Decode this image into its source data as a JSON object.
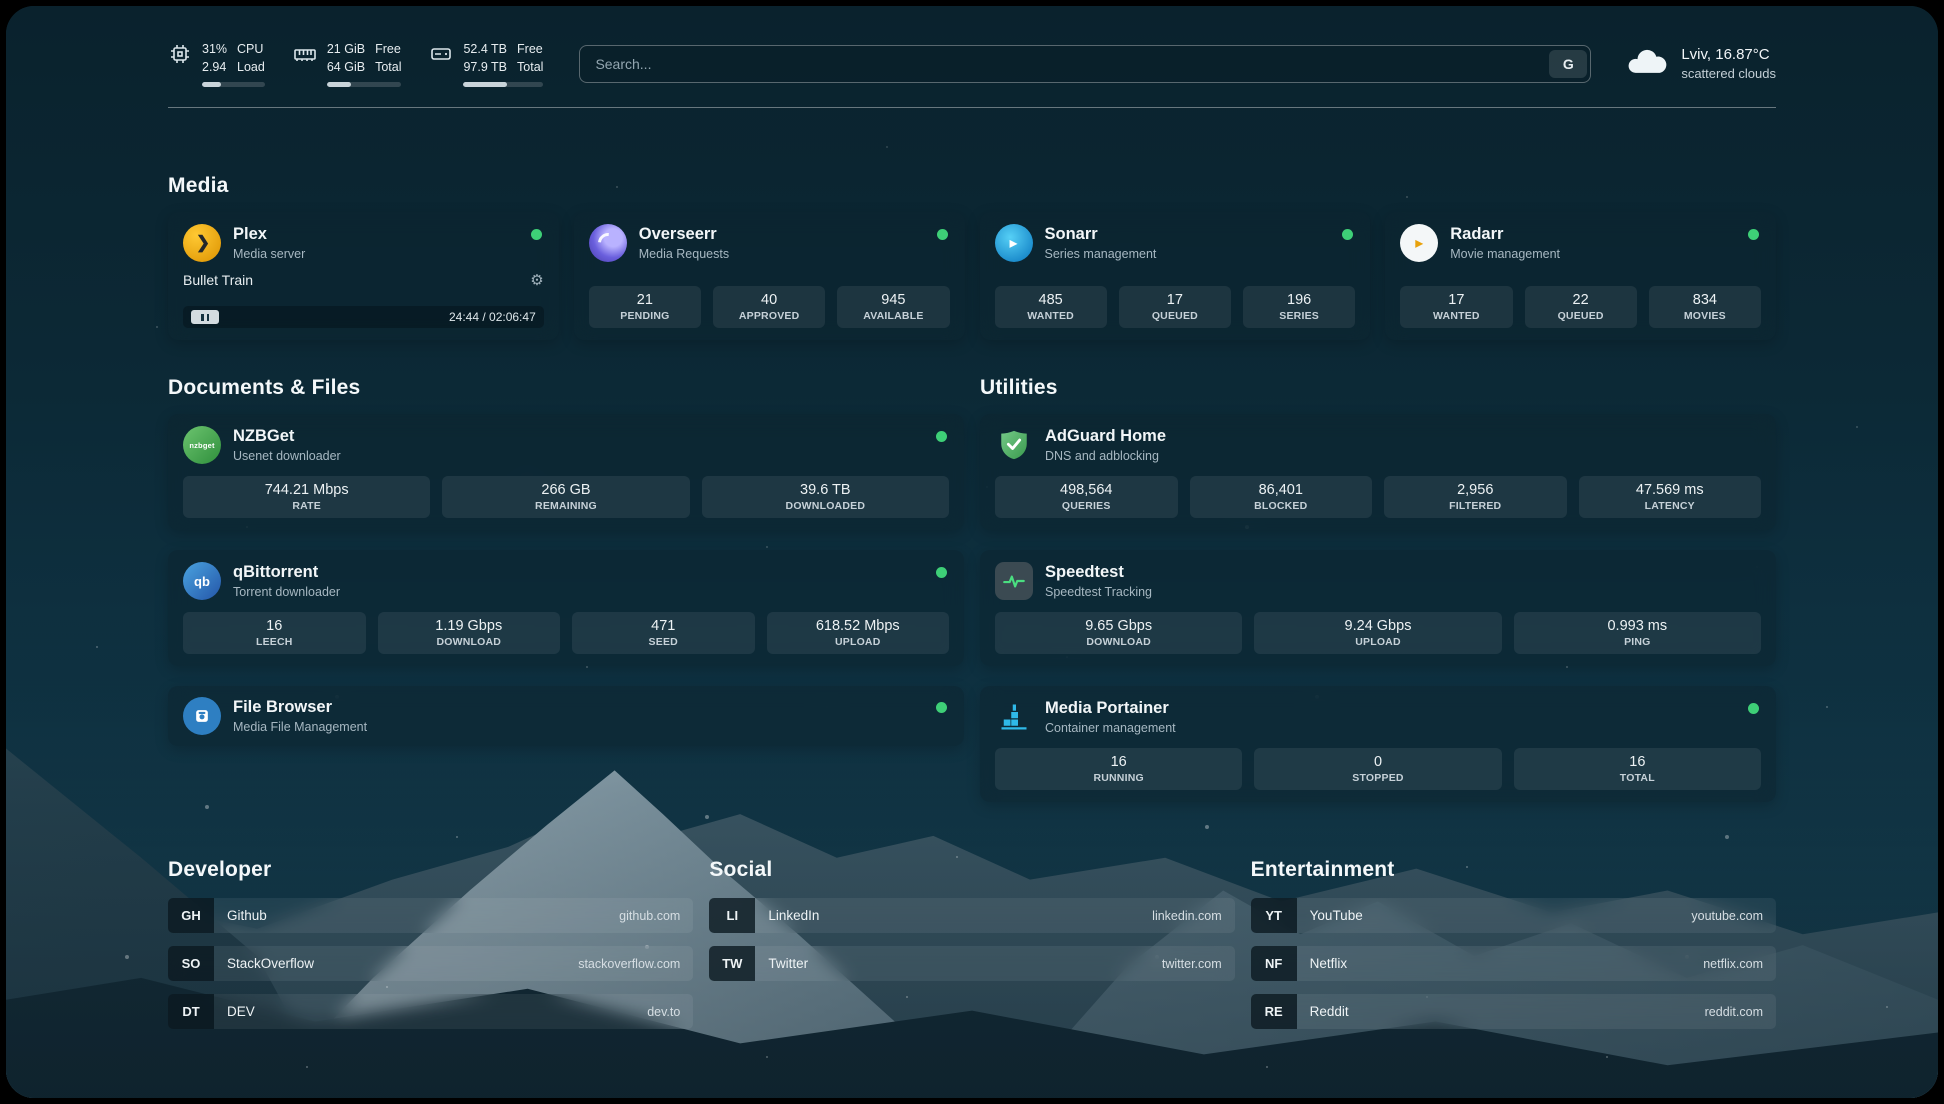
{
  "topbar": {
    "cpu": {
      "line1": "31%",
      "line2": "2.94",
      "lab1": "CPU",
      "lab2": "Load",
      "pct": 31
    },
    "ram": {
      "line1": "21 GiB",
      "line2": "64 GiB",
      "lab1": "Free",
      "lab2": "Total",
      "pct": 33
    },
    "disk": {
      "line1": "52.4 TB",
      "line2": "97.9 TB",
      "lab1": "Free",
      "lab2": "Total",
      "pct": 54
    },
    "search": {
      "placeholder": "Search...",
      "button": "G"
    },
    "weather": {
      "location": "Lviv, 16.87°C",
      "condition": "scattered clouds"
    }
  },
  "sections": {
    "media": {
      "title": "Media"
    },
    "documents": {
      "title": "Documents & Files"
    },
    "utilities": {
      "title": "Utilities"
    },
    "developer": {
      "title": "Developer"
    },
    "social": {
      "title": "Social"
    },
    "entertainment": {
      "title": "Entertainment"
    }
  },
  "apps": {
    "plex": {
      "name": "Plex",
      "sub": "Media server",
      "now_playing": "Bullet Train",
      "time": "24:44 / 02:06:47"
    },
    "overseerr": {
      "name": "Overseerr",
      "sub": "Media Requests",
      "stats": [
        {
          "v": "21",
          "l": "PENDING"
        },
        {
          "v": "40",
          "l": "APPROVED"
        },
        {
          "v": "945",
          "l": "AVAILABLE"
        }
      ]
    },
    "sonarr": {
      "name": "Sonarr",
      "sub": "Series management",
      "stats": [
        {
          "v": "485",
          "l": "WANTED"
        },
        {
          "v": "17",
          "l": "QUEUED"
        },
        {
          "v": "196",
          "l": "SERIES"
        }
      ]
    },
    "radarr": {
      "name": "Radarr",
      "sub": "Movie management",
      "stats": [
        {
          "v": "17",
          "l": "WANTED"
        },
        {
          "v": "22",
          "l": "QUEUED"
        },
        {
          "v": "834",
          "l": "MOVIES"
        }
      ]
    },
    "nzbget": {
      "name": "NZBGet",
      "sub": "Usenet downloader",
      "icon_text": "nzbget",
      "stats": [
        {
          "v": "744.21 Mbps",
          "l": "RATE"
        },
        {
          "v": "266 GB",
          "l": "REMAINING"
        },
        {
          "v": "39.6 TB",
          "l": "DOWNLOADED"
        }
      ]
    },
    "qbittorrent": {
      "name": "qBittorrent",
      "sub": "Torrent downloader",
      "icon_text": "qb",
      "stats": [
        {
          "v": "16",
          "l": "LEECH"
        },
        {
          "v": "1.19 Gbps",
          "l": "DOWNLOAD"
        },
        {
          "v": "471",
          "l": "SEED"
        },
        {
          "v": "618.52 Mbps",
          "l": "UPLOAD"
        }
      ]
    },
    "filebrowser": {
      "name": "File Browser",
      "sub": "Media File Management"
    },
    "adguard": {
      "name": "AdGuard Home",
      "sub": "DNS and adblocking",
      "stats": [
        {
          "v": "498,564",
          "l": "QUERIES"
        },
        {
          "v": "86,401",
          "l": "BLOCKED"
        },
        {
          "v": "2,956",
          "l": "FILTERED"
        },
        {
          "v": "47.569 ms",
          "l": "LATENCY"
        }
      ]
    },
    "speedtest": {
      "name": "Speedtest",
      "sub": "Speedtest Tracking",
      "stats": [
        {
          "v": "9.65 Gbps",
          "l": "DOWNLOAD"
        },
        {
          "v": "9.24 Gbps",
          "l": "UPLOAD"
        },
        {
          "v": "0.993 ms",
          "l": "PING"
        }
      ]
    },
    "portainer": {
      "name": "Media Portainer",
      "sub": "Container management",
      "stats": [
        {
          "v": "16",
          "l": "RUNNING"
        },
        {
          "v": "0",
          "l": "STOPPED"
        },
        {
          "v": "16",
          "l": "TOTAL"
        }
      ]
    }
  },
  "bookmarks": {
    "developer": [
      {
        "abbr": "GH",
        "name": "Github",
        "url": "github.com"
      },
      {
        "abbr": "SO",
        "name": "StackOverflow",
        "url": "stackoverflow.com"
      },
      {
        "abbr": "DT",
        "name": "DEV",
        "url": "dev.to"
      }
    ],
    "social": [
      {
        "abbr": "LI",
        "name": "LinkedIn",
        "url": "linkedin.com"
      },
      {
        "abbr": "TW",
        "name": "Twitter",
        "url": "twitter.com"
      }
    ],
    "entertainment": [
      {
        "abbr": "YT",
        "name": "YouTube",
        "url": "youtube.com"
      },
      {
        "abbr": "NF",
        "name": "Netflix",
        "url": "netflix.com"
      },
      {
        "abbr": "RE",
        "name": "Reddit",
        "url": "reddit.com"
      }
    ]
  }
}
